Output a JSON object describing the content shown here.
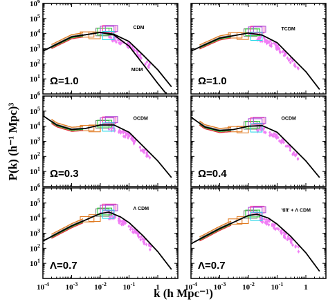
{
  "chart_data": {
    "type": "line",
    "xlabel": "k (h Mpc⁻¹)",
    "ylabel": "P(k) (h⁻¹ Mpc)³",
    "xscale": "log",
    "yscale": "log",
    "xlim": [
      0.0001,
      5
    ],
    "ylim": [
      1,
      1000000
    ],
    "x_ticks": [
      {
        "value": 0.0001,
        "base": "10",
        "exp": "-4"
      },
      {
        "value": 0.001,
        "base": "10",
        "exp": "-3"
      },
      {
        "value": 0.01,
        "base": "10",
        "exp": "-2"
      },
      {
        "value": 0.1,
        "base": "10",
        "exp": "-1"
      },
      {
        "value": 1,
        "base": "1",
        "exp": ""
      }
    ],
    "y_ticks": [
      {
        "value": 10,
        "base": "10",
        "exp": "1"
      },
      {
        "value": 100,
        "base": "10",
        "exp": "2"
      },
      {
        "value": 1000,
        "base": "10",
        "exp": "3"
      },
      {
        "value": 10000,
        "base": "10",
        "exp": "4"
      },
      {
        "value": 100000,
        "base": "10",
        "exp": "5"
      },
      {
        "value": 1000000,
        "base": "10",
        "exp": "6"
      }
    ],
    "grid": false,
    "box_colors": [
      "#e07b22",
      "#7a7a7a",
      "#2bd13a",
      "#b04fd8",
      "#ff3aa0",
      "#2fd8e8"
    ],
    "data_color": "#f07df5",
    "panels": [
      {
        "label": "Ω=1.0",
        "models": [
          {
            "name": "CDM",
            "x": [
              0.0001,
              0.001,
              0.01,
              0.03,
              0.1,
              0.3,
              1,
              3
            ],
            "y": [
              700,
              6000,
              12000,
              9000,
              3000,
              400,
              40,
              3
            ]
          },
          {
            "name": "MDM",
            "x": [
              0.0001,
              0.001,
              0.01,
              0.03,
              0.1,
              0.3,
              1,
              2
            ],
            "y": [
              700,
              6000,
              12000,
              8000,
              1500,
              100,
              5,
              1
            ]
          }
        ]
      },
      {
        "label": "Ω=1.0",
        "models": [
          {
            "name": "TCDM",
            "x": [
              0.0001,
              0.001,
              0.01,
              0.03,
              0.1,
              0.3,
              1,
              3
            ],
            "y": [
              700,
              5000,
              11000,
              8000,
              2500,
              300,
              30,
              2
            ]
          }
        ]
      },
      {
        "label": "Ω=0.3",
        "models": [
          {
            "name": "OCDM",
            "x": [
              0.0001,
              0.0003,
              0.001,
              0.003,
              0.01,
              0.03,
              0.1,
              0.3,
              1,
              3
            ],
            "y": [
              50000,
              12000,
              6000,
              7000,
              12000,
              12000,
              4000,
              500,
              50,
              4
            ]
          }
        ]
      },
      {
        "label": "Ω=0.4",
        "models": [
          {
            "name": "OCDM",
            "x": [
              0.0001,
              0.0003,
              0.001,
              0.003,
              0.01,
              0.03,
              0.1,
              0.3,
              1,
              3
            ],
            "y": [
              40000,
              9000,
              5000,
              6000,
              10000,
              11000,
              4000,
              500,
              50,
              4
            ]
          }
        ]
      },
      {
        "label": "Λ=0.7",
        "models": [
          {
            "name": "Λ CDM",
            "x": [
              0.0001,
              0.001,
              0.01,
              0.02,
              0.05,
              0.1,
              0.3,
              1,
              3
            ],
            "y": [
              300,
              3000,
              20000,
              25000,
              12000,
              5000,
              700,
              60,
              4
            ]
          }
        ]
      },
      {
        "label": "Λ=0.7",
        "models": [
          {
            "name": "'tilt' + Λ CDM",
            "x": [
              0.0001,
              0.001,
              0.01,
              0.02,
              0.05,
              0.1,
              0.3,
              1,
              3
            ],
            "y": [
              200,
              2000,
              15000,
              18000,
              10000,
              4000,
              600,
              50,
              3
            ]
          }
        ]
      }
    ]
  }
}
